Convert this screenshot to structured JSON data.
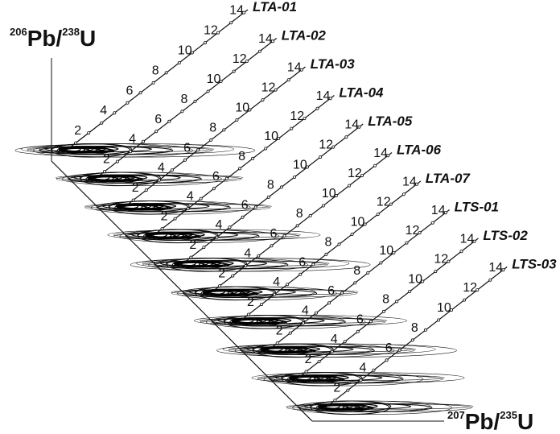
{
  "axes": {
    "y_label": {
      "sup": "206",
      "base": "Pb/",
      "sup2": "238",
      "base2": "U"
    },
    "x_label": {
      "sup": "207",
      "base": "Pb/",
      "sup2": "235",
      "base2": "U"
    }
  },
  "age_ticks": [
    "2",
    "4",
    "6",
    "8",
    "10",
    "12",
    "14"
  ],
  "samples": [
    {
      "name": "LTA-01",
      "ellipse_count": 6
    },
    {
      "name": "LTA-02",
      "ellipse_count": 4
    },
    {
      "name": "LTA-03",
      "ellipse_count": 4
    },
    {
      "name": "LTA-04",
      "ellipse_count": 5
    },
    {
      "name": "LTA-05",
      "ellipse_count": 6
    },
    {
      "name": "LTA-06",
      "ellipse_count": 4
    },
    {
      "name": "LTA-07",
      "ellipse_count": 5
    },
    {
      "name": "LTS-01",
      "ellipse_count": 6
    },
    {
      "name": "LTS-02",
      "ellipse_count": 5
    },
    {
      "name": "LTS-03",
      "ellipse_count": 4
    }
  ]
}
